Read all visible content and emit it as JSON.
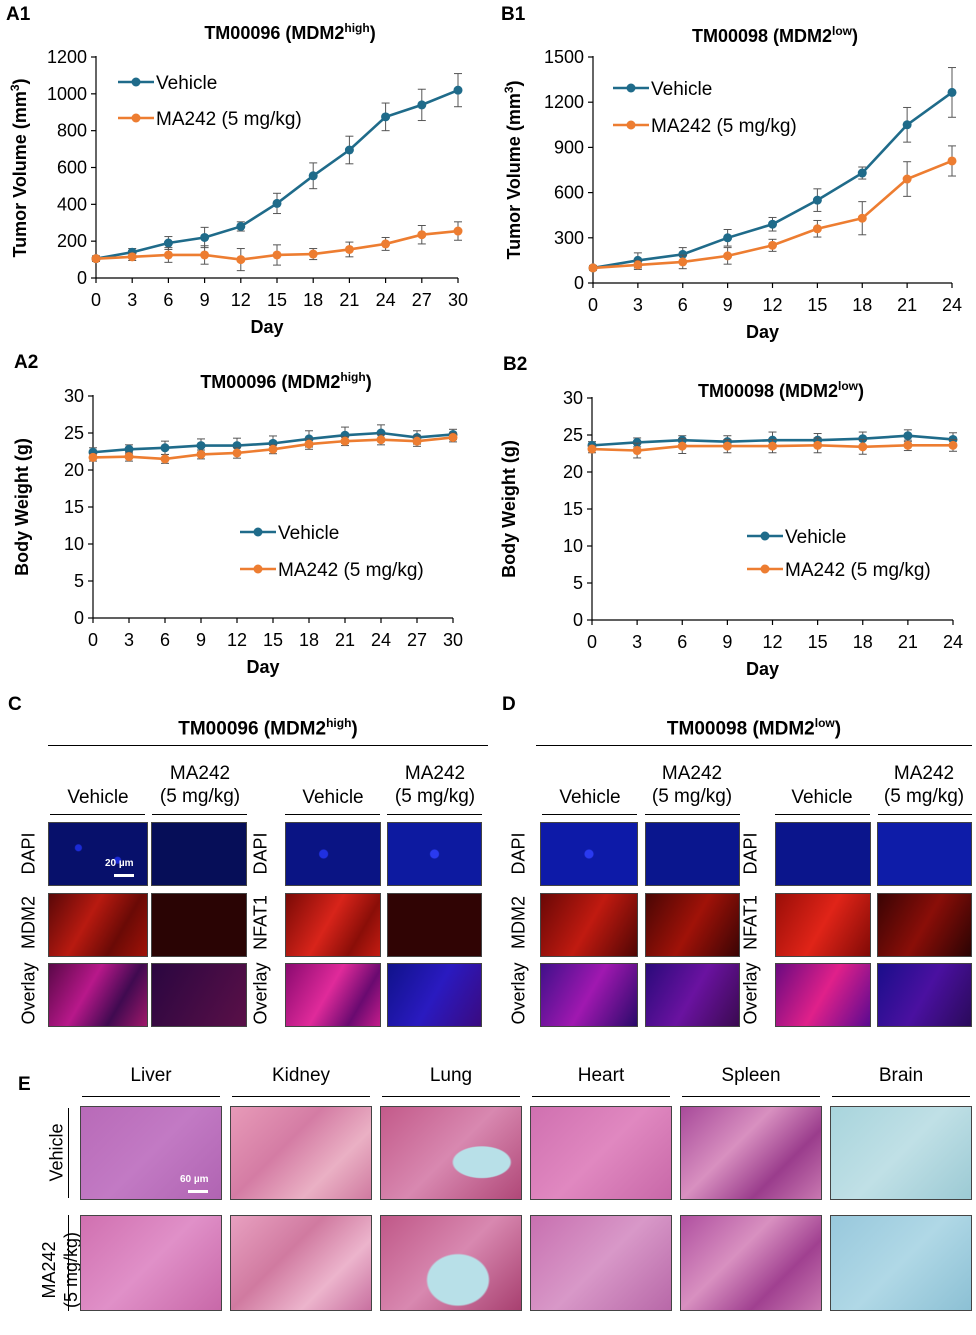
{
  "chart_data": [
    {
      "id": "A1",
      "type": "line",
      "panel_label": "A1",
      "title": "TM00096 (MDM2",
      "title_sup": "high",
      "title_end": ")",
      "xlabel": "Day",
      "ylabel": "Tumor Volume (mm",
      "ylabel_sup": "3",
      "ylabel_end": ")",
      "x": [
        0,
        3,
        6,
        9,
        12,
        15,
        18,
        21,
        24,
        27,
        30
      ],
      "xlim": [
        0,
        30
      ],
      "ylim": [
        0,
        1200
      ],
      "yticks": [
        0,
        200,
        400,
        600,
        800,
        1000,
        1200
      ],
      "legend_position": "top-left",
      "series": [
        {
          "name": "Vehicle",
          "color": "#1f6b8a",
          "values": [
            105,
            140,
            190,
            220,
            280,
            405,
            555,
            695,
            875,
            940,
            1020
          ],
          "errors": [
            15,
            20,
            35,
            55,
            25,
            55,
            70,
            75,
            75,
            85,
            90
          ]
        },
        {
          "name": "MA242 (5 mg/kg)",
          "color": "#ed7d31",
          "values": [
            105,
            115,
            125,
            125,
            100,
            125,
            130,
            155,
            185,
            235,
            255
          ],
          "errors": [
            15,
            20,
            40,
            50,
            60,
            55,
            30,
            40,
            35,
            50,
            50
          ]
        }
      ]
    },
    {
      "id": "B1",
      "type": "line",
      "panel_label": "B1",
      "title": "TM00098 (MDM2",
      "title_sup": "low",
      "title_end": ")",
      "xlabel": "Day",
      "ylabel": "Tumor Volume (mm",
      "ylabel_sup": "3",
      "ylabel_end": ")",
      "x": [
        0,
        3,
        6,
        9,
        12,
        15,
        18,
        21,
        24
      ],
      "xlim": [
        0,
        24
      ],
      "ylim": [
        0,
        1500
      ],
      "yticks": [
        0,
        300,
        600,
        900,
        1200,
        1500
      ],
      "legend_position": "top-left",
      "series": [
        {
          "name": "Vehicle",
          "color": "#1f6b8a",
          "values": [
            100,
            150,
            190,
            300,
            390,
            550,
            730,
            1050,
            1265
          ],
          "errors": [
            15,
            50,
            45,
            55,
            45,
            75,
            40,
            115,
            165
          ]
        },
        {
          "name": "MA242 (5 mg/kg)",
          "color": "#ed7d31",
          "values": [
            100,
            120,
            140,
            180,
            250,
            360,
            430,
            690,
            810
          ],
          "errors": [
            15,
            30,
            45,
            55,
            40,
            55,
            110,
            115,
            100
          ]
        }
      ]
    },
    {
      "id": "A2",
      "type": "line",
      "panel_label": "A2",
      "title": "TM00096 (MDM2",
      "title_sup": "high",
      "title_end": ")",
      "xlabel": "Day",
      "ylabel": "Body Weight (g)",
      "x": [
        0,
        3,
        6,
        9,
        12,
        15,
        18,
        21,
        24,
        27,
        30
      ],
      "xlim": [
        0,
        30
      ],
      "ylim": [
        0,
        30
      ],
      "yticks": [
        0,
        5,
        10,
        15,
        20,
        25,
        30
      ],
      "legend_position": "bottom-right",
      "series": [
        {
          "name": "Vehicle",
          "color": "#1f6b8a",
          "values": [
            22.4,
            22.8,
            23.0,
            23.3,
            23.3,
            23.6,
            24.2,
            24.7,
            25.0,
            24.4,
            24.8
          ],
          "errors": [
            0.6,
            0.6,
            0.9,
            0.9,
            1.0,
            1.0,
            1.1,
            1.1,
            1.1,
            0.9,
            0.7
          ]
        },
        {
          "name": "MA242 (5 mg/kg)",
          "color": "#ed7d31",
          "values": [
            21.7,
            21.8,
            21.5,
            22.1,
            22.3,
            22.8,
            23.5,
            23.9,
            24.1,
            23.9,
            24.4
          ],
          "errors": [
            0.5,
            0.6,
            0.6,
            0.6,
            0.7,
            0.6,
            0.7,
            0.6,
            0.7,
            0.7,
            0.6
          ]
        }
      ]
    },
    {
      "id": "B2",
      "type": "line",
      "panel_label": "B2",
      "title": "TM00098 (MDM2",
      "title_sup": "low",
      "title_end": ")",
      "xlabel": "Day",
      "ylabel": "Body Weight (g)",
      "x": [
        0,
        3,
        6,
        9,
        12,
        15,
        18,
        21,
        24
      ],
      "xlim": [
        0,
        24
      ],
      "ylim": [
        0,
        30
      ],
      "yticks": [
        0,
        5,
        10,
        15,
        20,
        25,
        30
      ],
      "legend_position": "bottom-right",
      "series": [
        {
          "name": "Vehicle",
          "color": "#1f6b8a",
          "values": [
            23.6,
            24.0,
            24.3,
            24.1,
            24.3,
            24.3,
            24.5,
            24.9,
            24.4
          ],
          "errors": [
            0.5,
            0.6,
            0.6,
            0.8,
            1.1,
            0.9,
            0.9,
            0.8,
            0.9
          ]
        },
        {
          "name": "MA242 (5 mg/kg)",
          "color": "#ed7d31",
          "values": [
            23.1,
            22.9,
            23.5,
            23.5,
            23.5,
            23.6,
            23.4,
            23.6,
            23.6
          ],
          "errors": [
            0.5,
            1.0,
            1.0,
            0.9,
            0.9,
            1.0,
            1.0,
            0.7,
            0.8
          ]
        }
      ]
    }
  ],
  "panel_c": {
    "label": "C",
    "title": "TM00096 (MDM2",
    "title_sup": "high",
    "title_end": ")",
    "col_vehicle": "Vehicle",
    "col_ma242_1": "MA242",
    "col_ma242_2": "(5 mg/kg)",
    "row_dapi": "DAPI",
    "row_mdm2": "MDM2",
    "row_nfat1": "NFAT1",
    "row_overlay": "Overlay",
    "scale": "20 µm"
  },
  "panel_d": {
    "label": "D",
    "title": "TM00098 (MDM2",
    "title_sup": "low",
    "title_end": ")",
    "col_vehicle": "Vehicle",
    "col_ma242_1": "MA242",
    "col_ma242_2": "(5 mg/kg)",
    "row_dapi": "DAPI",
    "row_mdm2": "MDM2",
    "row_nfat1": "NFAT1",
    "row_overlay": "Overlay"
  },
  "panel_e": {
    "label": "E",
    "organs": [
      "Liver",
      "Kidney",
      "Lung",
      "Heart",
      "Spleen",
      "Brain"
    ],
    "row_vehicle": "Vehicle",
    "row_ma242_1": "MA242",
    "row_ma242_2": "(5 mg/kg)",
    "scale": "60 µm"
  },
  "colors": {
    "vehicle": "#1f6b8a",
    "ma242": "#ed7d31"
  }
}
